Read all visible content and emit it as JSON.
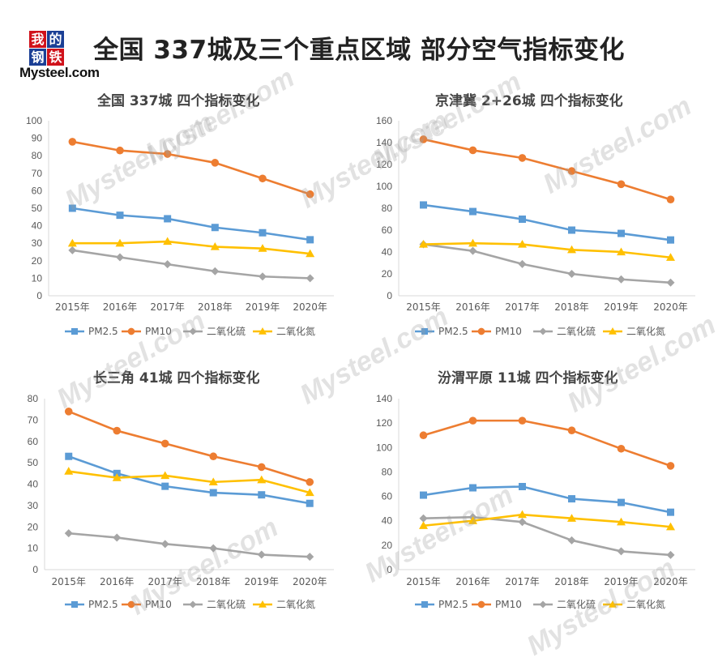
{
  "page": {
    "title": "全国 337城及三个重点区域 部分空气指标变化",
    "logo_chars": [
      "我",
      "的",
      "钢",
      "铁"
    ],
    "logo_text": "Mysteel.com",
    "watermark": "Mysteel.com"
  },
  "colors": {
    "PM2.5": "#5b9bd5",
    "PM10": "#ed7d31",
    "SO2": "#a5a5a5",
    "NO2": "#ffc000"
  },
  "chart_data": [
    {
      "type": "line",
      "title": "全国 337城 四个指标变化",
      "categories": [
        "2015年",
        "2016年",
        "2017年",
        "2018年",
        "2019年",
        "2020年"
      ],
      "ylim": [
        0,
        100
      ],
      "ytick_step": 10,
      "xlabel": "",
      "ylabel": "",
      "legend_position": "bottom",
      "grid": false,
      "series": [
        {
          "name": "PM2.5",
          "marker": "square",
          "values": [
            50,
            46,
            44,
            39,
            36,
            32
          ]
        },
        {
          "name": "PM10",
          "marker": "circle",
          "values": [
            88,
            83,
            81,
            76,
            67,
            58
          ]
        },
        {
          "name": "二氧化硫",
          "marker": "diamond",
          "values": [
            26,
            22,
            18,
            14,
            11,
            10
          ]
        },
        {
          "name": "二氧化氮",
          "marker": "triangle",
          "values": [
            30,
            30,
            31,
            28,
            27,
            24
          ]
        }
      ]
    },
    {
      "type": "line",
      "title": "京津冀 2+26城 四个指标变化",
      "categories": [
        "2015年",
        "2016年",
        "2017年",
        "2018年",
        "2019年",
        "2020年"
      ],
      "ylim": [
        0,
        160
      ],
      "ytick_step": 20,
      "xlabel": "",
      "ylabel": "",
      "legend_position": "bottom",
      "grid": false,
      "series": [
        {
          "name": "PM2.5",
          "marker": "square",
          "values": [
            83,
            77,
            70,
            60,
            57,
            51
          ]
        },
        {
          "name": "PM10",
          "marker": "circle",
          "values": [
            143,
            133,
            126,
            114,
            102,
            88
          ]
        },
        {
          "name": "二氧化硫",
          "marker": "diamond",
          "values": [
            47,
            41,
            29,
            20,
            15,
            12
          ]
        },
        {
          "name": "二氧化氮",
          "marker": "triangle",
          "values": [
            47,
            48,
            47,
            42,
            40,
            35
          ]
        }
      ]
    },
    {
      "type": "line",
      "title": "长三角 41城 四个指标变化",
      "categories": [
        "2015年",
        "2016年",
        "2017年",
        "2018年",
        "2019年",
        "2020年"
      ],
      "ylim": [
        0,
        80
      ],
      "ytick_step": 10,
      "xlabel": "",
      "ylabel": "",
      "legend_position": "bottom",
      "grid": false,
      "series": [
        {
          "name": "PM2.5",
          "marker": "square",
          "values": [
            53,
            45,
            39,
            36,
            35,
            31
          ]
        },
        {
          "name": "PM10",
          "marker": "circle",
          "values": [
            74,
            65,
            59,
            53,
            48,
            41
          ]
        },
        {
          "name": "二氧化硫",
          "marker": "diamond",
          "values": [
            17,
            15,
            12,
            10,
            7,
            6
          ]
        },
        {
          "name": "二氧化氮",
          "marker": "triangle",
          "values": [
            46,
            43,
            44,
            41,
            42,
            36
          ]
        }
      ]
    },
    {
      "type": "line",
      "title": "汾渭平原 11城 四个指标变化",
      "categories": [
        "2015年",
        "2016年",
        "2017年",
        "2018年",
        "2019年",
        "2020年"
      ],
      "ylim": [
        0,
        140
      ],
      "ytick_step": 20,
      "xlabel": "",
      "ylabel": "",
      "legend_position": "bottom",
      "grid": false,
      "series": [
        {
          "name": "PM2.5",
          "marker": "square",
          "values": [
            61,
            67,
            68,
            58,
            55,
            47
          ]
        },
        {
          "name": "PM10",
          "marker": "circle",
          "values": [
            110,
            122,
            122,
            114,
            99,
            85
          ]
        },
        {
          "name": "二氧化硫",
          "marker": "diamond",
          "values": [
            42,
            43,
            39,
            24,
            15,
            12
          ]
        },
        {
          "name": "二氧化氮",
          "marker": "triangle",
          "values": [
            36,
            40,
            45,
            42,
            39,
            35
          ]
        }
      ]
    }
  ]
}
